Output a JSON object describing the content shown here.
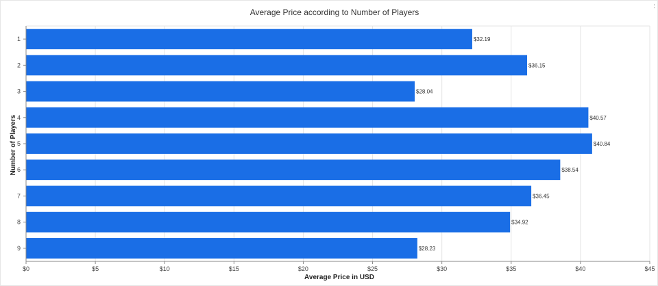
{
  "chart_data": {
    "type": "bar",
    "orientation": "horizontal",
    "title": "Average Price according to Number of Players",
    "xlabel": "Average Price in USD",
    "ylabel": "Number of Players",
    "categories": [
      "1",
      "2",
      "3",
      "4",
      "5",
      "6",
      "7",
      "8",
      "9"
    ],
    "values": [
      32.19,
      36.15,
      28.04,
      40.57,
      40.84,
      38.54,
      36.45,
      34.92,
      28.23
    ],
    "data_labels": [
      "$32.19",
      "$36.15",
      "$28.04",
      "$40.57",
      "$40.84",
      "$38.54",
      "$36.45",
      "$34.92",
      "$28.23"
    ],
    "x_ticks": [
      "$0",
      "$5",
      "$10",
      "$15",
      "$20",
      "$25",
      "$30",
      "$35",
      "$40",
      "$45"
    ],
    "xlim": [
      0,
      45
    ],
    "grid": true,
    "bar_color": "#1a6ee6"
  },
  "corner_mark": ":"
}
